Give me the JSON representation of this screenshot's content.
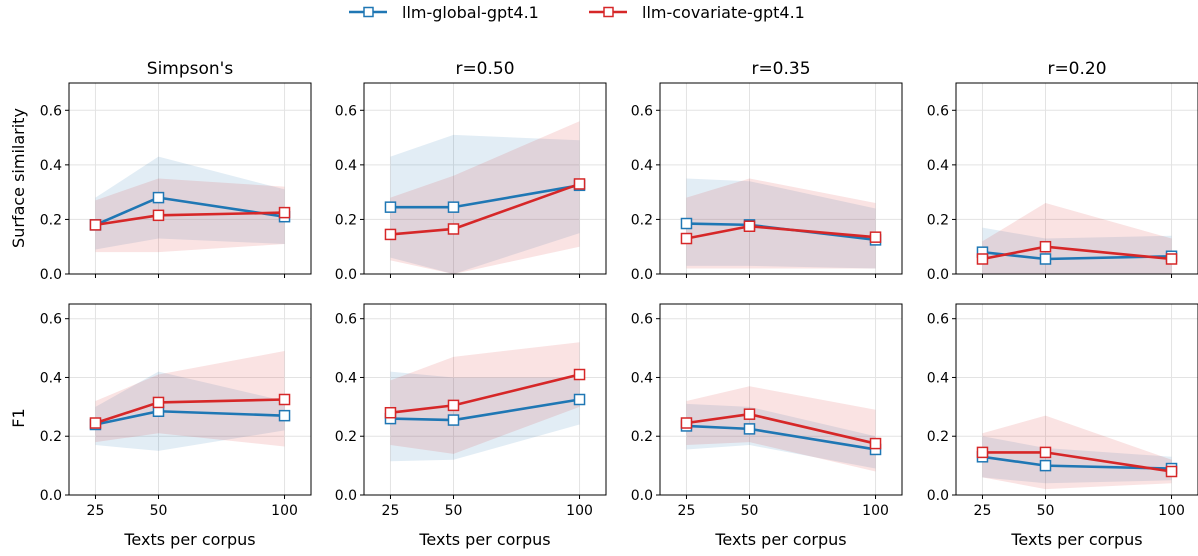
{
  "legend": {
    "placement": "top-center",
    "entries": [
      {
        "label": "llm-global-gpt4.1",
        "color": "#1f77b4"
      },
      {
        "label": "llm-covariate-gpt4.1",
        "color": "#d62728"
      }
    ]
  },
  "column_titles": [
    "Simpson's",
    "r=0.50",
    "r=0.35",
    "r=0.20"
  ],
  "row_labels": [
    "Surface similarity",
    "F1"
  ],
  "xlabel": "Texts per corpus",
  "chart_data": [
    {
      "type": "line",
      "title": "Simpson's",
      "ylabel": "Surface similarity",
      "xlabel": "",
      "x": [
        25,
        50,
        100
      ],
      "xticks": [
        25,
        50,
        100
      ],
      "ylim": [
        0,
        0.7
      ],
      "yticks": [
        0.0,
        0.2,
        0.4,
        0.6
      ],
      "grid": true,
      "series": [
        {
          "name": "llm-global-gpt4.1",
          "color": "#1f77b4",
          "values": [
            0.18,
            0.28,
            0.21
          ],
          "lower": [
            0.09,
            0.13,
            0.11
          ],
          "upper": [
            0.28,
            0.43,
            0.31
          ]
        },
        {
          "name": "llm-covariate-gpt4.1",
          "color": "#d62728",
          "values": [
            0.18,
            0.215,
            0.225
          ],
          "lower": [
            0.08,
            0.08,
            0.11
          ],
          "upper": [
            0.27,
            0.35,
            0.32
          ]
        }
      ]
    },
    {
      "type": "line",
      "title": "r=0.50",
      "ylabel": "",
      "xlabel": "",
      "x": [
        25,
        50,
        100
      ],
      "xticks": [
        25,
        50,
        100
      ],
      "ylim": [
        0,
        0.7
      ],
      "yticks": [
        0.0,
        0.2,
        0.4,
        0.6
      ],
      "grid": true,
      "series": [
        {
          "name": "llm-global-gpt4.1",
          "color": "#1f77b4",
          "values": [
            0.245,
            0.245,
            0.325
          ],
          "lower": [
            0.06,
            0.0,
            0.15
          ],
          "upper": [
            0.43,
            0.51,
            0.49
          ]
        },
        {
          "name": "llm-covariate-gpt4.1",
          "color": "#d62728",
          "values": [
            0.145,
            0.165,
            0.33
          ],
          "lower": [
            0.05,
            0.0,
            0.1
          ],
          "upper": [
            0.28,
            0.36,
            0.56
          ]
        }
      ]
    },
    {
      "type": "line",
      "title": "r=0.35",
      "ylabel": "",
      "xlabel": "",
      "x": [
        25,
        50,
        100
      ],
      "xticks": [
        25,
        50,
        100
      ],
      "ylim": [
        0,
        0.7
      ],
      "yticks": [
        0.0,
        0.2,
        0.4,
        0.6
      ],
      "grid": true,
      "series": [
        {
          "name": "llm-global-gpt4.1",
          "color": "#1f77b4",
          "values": [
            0.185,
            0.18,
            0.125
          ],
          "lower": [
            0.03,
            0.03,
            0.02
          ],
          "upper": [
            0.35,
            0.34,
            0.24
          ]
        },
        {
          "name": "llm-covariate-gpt4.1",
          "color": "#d62728",
          "values": [
            0.13,
            0.175,
            0.135
          ],
          "lower": [
            0.02,
            0.02,
            0.02
          ],
          "upper": [
            0.28,
            0.35,
            0.26
          ]
        }
      ]
    },
    {
      "type": "line",
      "title": "r=0.20",
      "ylabel": "",
      "xlabel": "",
      "x": [
        25,
        50,
        100
      ],
      "xticks": [
        25,
        50,
        100
      ],
      "ylim": [
        0,
        0.7
      ],
      "yticks": [
        0.0,
        0.2,
        0.4,
        0.6
      ],
      "grid": true,
      "series": [
        {
          "name": "llm-global-gpt4.1",
          "color": "#1f77b4",
          "values": [
            0.08,
            0.055,
            0.065
          ],
          "lower": [
            0.0,
            0.0,
            0.0
          ],
          "upper": [
            0.17,
            0.13,
            0.14
          ]
        },
        {
          "name": "llm-covariate-gpt4.1",
          "color": "#d62728",
          "values": [
            0.055,
            0.1,
            0.055
          ],
          "lower": [
            0.0,
            0.0,
            0.0
          ],
          "upper": [
            0.12,
            0.26,
            0.13
          ]
        }
      ]
    },
    {
      "type": "line",
      "title": "",
      "ylabel": "F1",
      "xlabel": "Texts per corpus",
      "x": [
        25,
        50,
        100
      ],
      "xticks": [
        25,
        50,
        100
      ],
      "ylim": [
        0,
        0.65
      ],
      "yticks": [
        0.0,
        0.2,
        0.4,
        0.6
      ],
      "grid": true,
      "series": [
        {
          "name": "llm-global-gpt4.1",
          "color": "#1f77b4",
          "values": [
            0.24,
            0.285,
            0.27
          ],
          "lower": [
            0.17,
            0.15,
            0.22
          ],
          "upper": [
            0.3,
            0.42,
            0.32
          ]
        },
        {
          "name": "llm-covariate-gpt4.1",
          "color": "#d62728",
          "values": [
            0.245,
            0.315,
            0.325
          ],
          "lower": [
            0.18,
            0.21,
            0.165
          ],
          "upper": [
            0.32,
            0.41,
            0.49
          ]
        }
      ]
    },
    {
      "type": "line",
      "title": "",
      "ylabel": "",
      "xlabel": "Texts per corpus",
      "x": [
        25,
        50,
        100
      ],
      "xticks": [
        25,
        50,
        100
      ],
      "ylim": [
        0,
        0.65
      ],
      "yticks": [
        0.0,
        0.2,
        0.4,
        0.6
      ],
      "grid": true,
      "series": [
        {
          "name": "llm-global-gpt4.1",
          "color": "#1f77b4",
          "values": [
            0.26,
            0.255,
            0.325
          ],
          "lower": [
            0.115,
            0.12,
            0.24
          ],
          "upper": [
            0.42,
            0.4,
            0.4
          ]
        },
        {
          "name": "llm-covariate-gpt4.1",
          "color": "#d62728",
          "values": [
            0.28,
            0.305,
            0.41
          ],
          "lower": [
            0.17,
            0.14,
            0.3
          ],
          "upper": [
            0.39,
            0.47,
            0.52
          ]
        }
      ]
    },
    {
      "type": "line",
      "title": "",
      "ylabel": "",
      "xlabel": "Texts per corpus",
      "x": [
        25,
        50,
        100
      ],
      "xticks": [
        25,
        50,
        100
      ],
      "ylim": [
        0,
        0.65
      ],
      "yticks": [
        0.0,
        0.2,
        0.4,
        0.6
      ],
      "grid": true,
      "series": [
        {
          "name": "llm-global-gpt4.1",
          "color": "#1f77b4",
          "values": [
            0.235,
            0.225,
            0.155
          ],
          "lower": [
            0.155,
            0.17,
            0.09
          ],
          "upper": [
            0.31,
            0.3,
            0.2
          ]
        },
        {
          "name": "llm-covariate-gpt4.1",
          "color": "#d62728",
          "values": [
            0.245,
            0.275,
            0.175
          ],
          "lower": [
            0.17,
            0.18,
            0.08
          ],
          "upper": [
            0.32,
            0.37,
            0.29
          ]
        }
      ]
    },
    {
      "type": "line",
      "title": "",
      "ylabel": "",
      "xlabel": "Texts per corpus",
      "x": [
        25,
        50,
        100
      ],
      "xticks": [
        25,
        50,
        100
      ],
      "ylim": [
        0,
        0.65
      ],
      "yticks": [
        0.0,
        0.2,
        0.4,
        0.6
      ],
      "grid": true,
      "series": [
        {
          "name": "llm-global-gpt4.1",
          "color": "#1f77b4",
          "values": [
            0.13,
            0.1,
            0.09
          ],
          "lower": [
            0.06,
            0.04,
            0.05
          ],
          "upper": [
            0.2,
            0.16,
            0.13
          ]
        },
        {
          "name": "llm-covariate-gpt4.1",
          "color": "#d62728",
          "values": [
            0.145,
            0.145,
            0.08
          ],
          "lower": [
            0.06,
            0.02,
            0.04
          ],
          "upper": [
            0.21,
            0.27,
            0.12
          ]
        }
      ]
    }
  ]
}
